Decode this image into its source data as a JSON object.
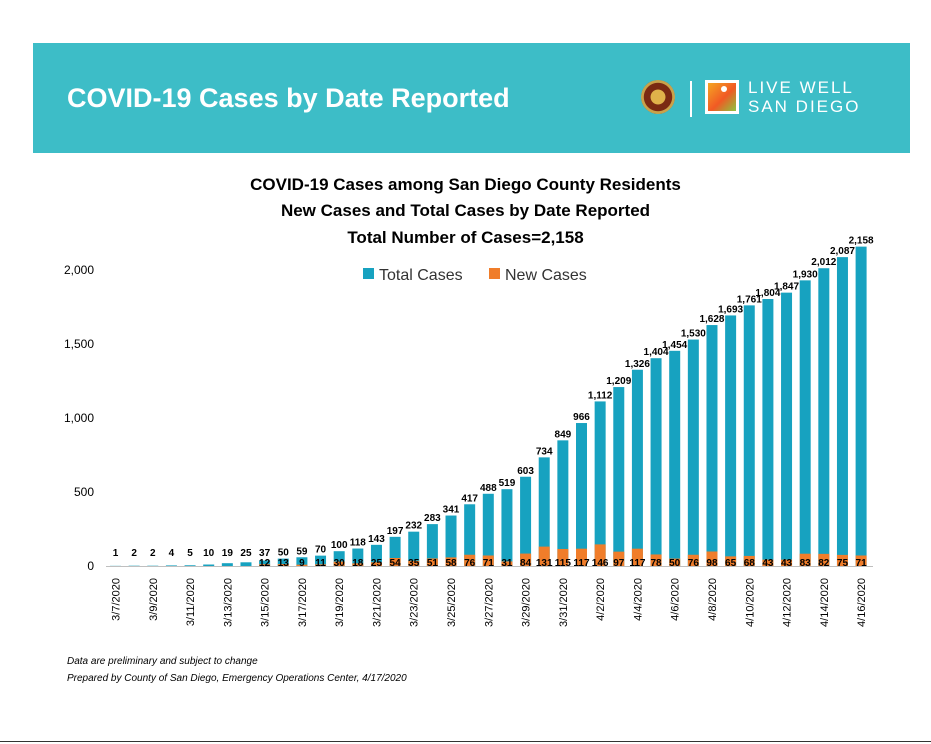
{
  "header": {
    "title": "COVID-19 Cases by Date Reported",
    "logo_text_line1": "LIVE WELL",
    "logo_text_line2": "SAN DIEGO",
    "banner_color": "#3dbdc7"
  },
  "chart_data": {
    "type": "bar",
    "title": "COVID-19 Cases among San Diego County Residents",
    "subtitle": "New Cases and Total Cases by Date Reported",
    "subtitle2": "Total Number of Cases=2,158",
    "xlabel": "",
    "ylabel": "",
    "ylim": [
      0,
      2200
    ],
    "yticks": [
      "0",
      "500",
      "1,000",
      "1,500",
      "2,000"
    ],
    "ytick_values": [
      0,
      500,
      1000,
      1500,
      2000
    ],
    "legend_position": "top-center",
    "grid": false,
    "categories": [
      "3/7/2020",
      "3/8/2020",
      "3/9/2020",
      "3/10/2020",
      "3/11/2020",
      "3/12/2020",
      "3/13/2020",
      "3/14/2020",
      "3/15/2020",
      "3/16/2020",
      "3/17/2020",
      "3/18/2020",
      "3/19/2020",
      "3/20/2020",
      "3/21/2020",
      "3/22/2020",
      "3/23/2020",
      "3/24/2020",
      "3/25/2020",
      "3/26/2020",
      "3/27/2020",
      "3/28/2020",
      "3/29/2020",
      "3/30/2020",
      "3/31/2020",
      "4/1/2020",
      "4/2/2020",
      "4/3/2020",
      "4/4/2020",
      "4/5/2020",
      "4/6/2020",
      "4/7/2020",
      "4/8/2020",
      "4/9/2020",
      "4/10/2020",
      "4/11/2020",
      "4/12/2020",
      "4/13/2020",
      "4/14/2020",
      "4/15/2020",
      "4/16/2020"
    ],
    "x_tick_labels": [
      "3/7/2020",
      "3/9/2020",
      "3/11/2020",
      "3/13/2020",
      "3/15/2020",
      "3/17/2020",
      "3/19/2020",
      "3/21/2020",
      "3/23/2020",
      "3/25/2020",
      "3/27/2020",
      "3/29/2020",
      "3/31/2020",
      "4/2/2020",
      "4/4/2020",
      "4/6/2020",
      "4/8/2020",
      "4/10/2020",
      "4/12/2020",
      "4/14/2020",
      "4/16/2020"
    ],
    "series": [
      {
        "name": "Total Cases",
        "color": "#17a2c0",
        "values": [
          1,
          2,
          2,
          4,
          5,
          10,
          19,
          25,
          37,
          50,
          59,
          70,
          100,
          118,
          143,
          197,
          232,
          283,
          341,
          417,
          488,
          519,
          603,
          734,
          849,
          966,
          1112,
          1209,
          1326,
          1404,
          1454,
          1530,
          1628,
          1693,
          1761,
          1804,
          1847,
          1930,
          2012,
          2087,
          2158
        ],
        "labels": [
          "1",
          "2",
          "2",
          "4",
          "5",
          "10",
          "19",
          "25",
          "37",
          "50",
          "59",
          "70",
          "100",
          "118",
          "143",
          "197",
          "232",
          "283",
          "341",
          "417",
          "488",
          "519",
          "603",
          "734",
          "849",
          "966",
          "1,112",
          "1,209",
          "1,326",
          "1,404",
          "1,454",
          "1,530",
          "1,628",
          "1,693",
          "1,761",
          "1,804",
          "1,847",
          "1,930",
          "2,012",
          "2,087",
          "2,158"
        ]
      },
      {
        "name": "New Cases",
        "color": "#f07d2a",
        "values": [
          null,
          null,
          null,
          null,
          null,
          null,
          null,
          null,
          12,
          13,
          9,
          11,
          30,
          18,
          25,
          54,
          35,
          51,
          58,
          76,
          71,
          31,
          84,
          131,
          115,
          117,
          146,
          97,
          117,
          78,
          50,
          76,
          98,
          65,
          68,
          43,
          43,
          83,
          82,
          75,
          71
        ],
        "labels": [
          "",
          "",
          "",
          "",
          "",
          "",
          "",
          "",
          "12",
          "13",
          "9",
          "11",
          "30",
          "18",
          "25",
          "54",
          "35",
          "51",
          "58",
          "76",
          "71",
          "31",
          "84",
          "131",
          "115",
          "117",
          "146",
          "97",
          "117",
          "78",
          "50",
          "76",
          "98",
          "65",
          "68",
          "43",
          "43",
          "83",
          "82",
          "75",
          "71"
        ]
      }
    ]
  },
  "notes": {
    "line1": "Data are preliminary and subject to change",
    "line2": "Prepared by County of San Diego, Emergency Operations Center, 4/17/2020"
  }
}
